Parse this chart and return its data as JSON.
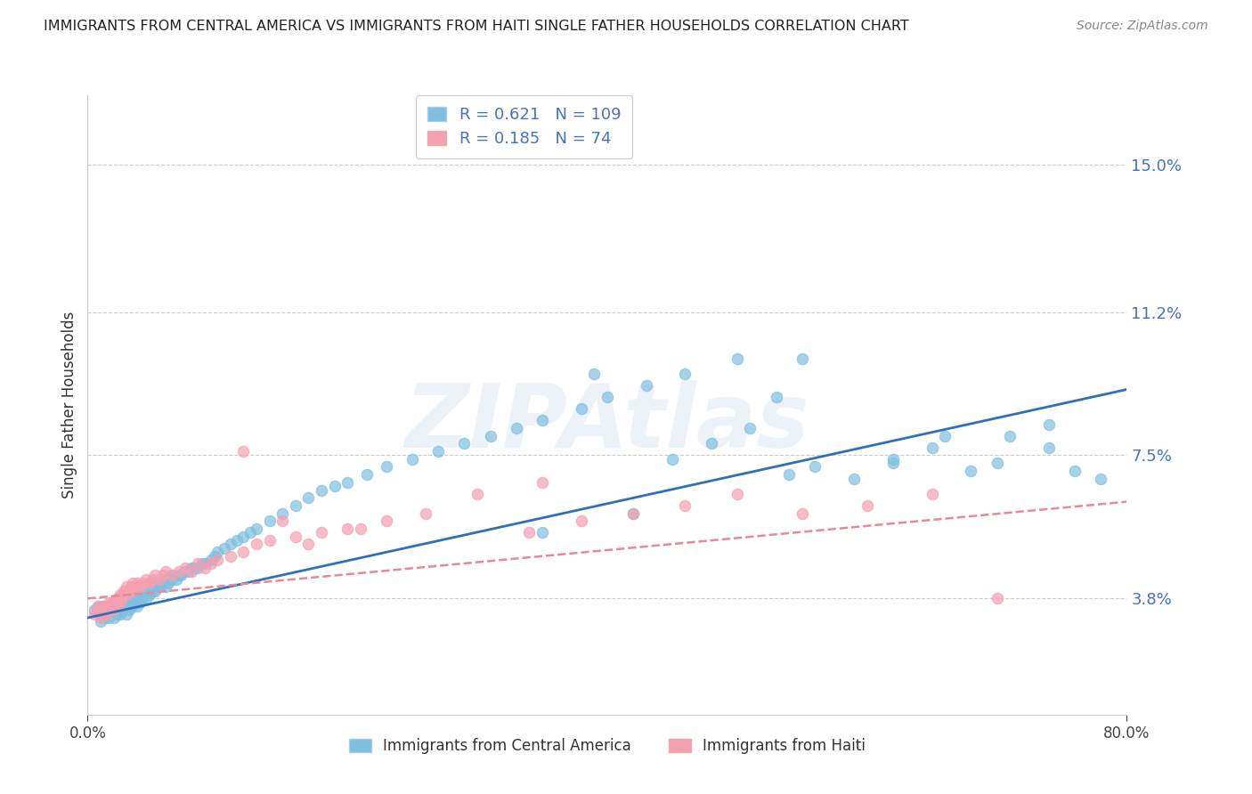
{
  "title": "IMMIGRANTS FROM CENTRAL AMERICA VS IMMIGRANTS FROM HAITI SINGLE FATHER HOUSEHOLDS CORRELATION CHART",
  "source": "Source: ZipAtlas.com",
  "ylabel": "Single Father Households",
  "ytick_labels": [
    "3.8%",
    "7.5%",
    "11.2%",
    "15.0%"
  ],
  "ytick_values": [
    0.038,
    0.075,
    0.112,
    0.15
  ],
  "xlim": [
    0.0,
    0.8
  ],
  "ylim": [
    0.008,
    0.168
  ],
  "blue_label": "Immigrants from Central America",
  "pink_label": "Immigrants from Haiti",
  "R_blue": 0.621,
  "N_blue": 109,
  "R_pink": 0.185,
  "N_pink": 74,
  "blue_color": "#7fbfdf",
  "pink_color": "#f4a0b0",
  "blue_line_color": "#3070b8",
  "pink_line_color": "#e88898",
  "background_color": "#ffffff",
  "watermark": "ZIPAtlas",
  "title_fontsize": 11.5,
  "blue_points_x": [
    0.005,
    0.008,
    0.01,
    0.01,
    0.012,
    0.013,
    0.015,
    0.015,
    0.016,
    0.018,
    0.02,
    0.02,
    0.022,
    0.022,
    0.023,
    0.025,
    0.025,
    0.026,
    0.027,
    0.028,
    0.03,
    0.03,
    0.032,
    0.032,
    0.033,
    0.035,
    0.035,
    0.036,
    0.037,
    0.038,
    0.04,
    0.04,
    0.042,
    0.043,
    0.045,
    0.046,
    0.048,
    0.05,
    0.05,
    0.052,
    0.055,
    0.055,
    0.058,
    0.06,
    0.06,
    0.062,
    0.065,
    0.065,
    0.068,
    0.07,
    0.072,
    0.075,
    0.078,
    0.08,
    0.082,
    0.085,
    0.088,
    0.09,
    0.095,
    0.098,
    0.1,
    0.105,
    0.11,
    0.115,
    0.12,
    0.125,
    0.13,
    0.14,
    0.15,
    0.16,
    0.17,
    0.18,
    0.19,
    0.2,
    0.215,
    0.23,
    0.25,
    0.27,
    0.29,
    0.31,
    0.33,
    0.35,
    0.38,
    0.4,
    0.43,
    0.46,
    0.5,
    0.53,
    0.56,
    0.59,
    0.62,
    0.65,
    0.68,
    0.71,
    0.74,
    0.39,
    0.45,
    0.48,
    0.51,
    0.54,
    0.55,
    0.62,
    0.66,
    0.7,
    0.74,
    0.76,
    0.78,
    0.35,
    0.42
  ],
  "blue_points_y": [
    0.035,
    0.036,
    0.032,
    0.034,
    0.036,
    0.033,
    0.034,
    0.036,
    0.033,
    0.035,
    0.033,
    0.035,
    0.034,
    0.036,
    0.035,
    0.034,
    0.036,
    0.035,
    0.036,
    0.037,
    0.034,
    0.036,
    0.035,
    0.037,
    0.036,
    0.036,
    0.038,
    0.037,
    0.038,
    0.036,
    0.037,
    0.039,
    0.038,
    0.04,
    0.038,
    0.04,
    0.039,
    0.04,
    0.041,
    0.04,
    0.041,
    0.042,
    0.042,
    0.041,
    0.043,
    0.042,
    0.043,
    0.044,
    0.043,
    0.044,
    0.044,
    0.045,
    0.045,
    0.046,
    0.046,
    0.046,
    0.047,
    0.047,
    0.048,
    0.049,
    0.05,
    0.051,
    0.052,
    0.053,
    0.054,
    0.055,
    0.056,
    0.058,
    0.06,
    0.062,
    0.064,
    0.066,
    0.067,
    0.068,
    0.07,
    0.072,
    0.074,
    0.076,
    0.078,
    0.08,
    0.082,
    0.084,
    0.087,
    0.09,
    0.093,
    0.096,
    0.1,
    0.09,
    0.072,
    0.069,
    0.073,
    0.077,
    0.071,
    0.08,
    0.083,
    0.096,
    0.074,
    0.078,
    0.082,
    0.07,
    0.1,
    0.074,
    0.08,
    0.073,
    0.077,
    0.071,
    0.069,
    0.055,
    0.06
  ],
  "pink_points_x": [
    0.005,
    0.007,
    0.008,
    0.01,
    0.01,
    0.012,
    0.012,
    0.013,
    0.014,
    0.015,
    0.015,
    0.016,
    0.017,
    0.018,
    0.019,
    0.02,
    0.02,
    0.021,
    0.022,
    0.023,
    0.025,
    0.025,
    0.026,
    0.027,
    0.028,
    0.03,
    0.03,
    0.032,
    0.033,
    0.035,
    0.035,
    0.037,
    0.038,
    0.04,
    0.042,
    0.045,
    0.048,
    0.05,
    0.052,
    0.055,
    0.058,
    0.06,
    0.065,
    0.07,
    0.075,
    0.08,
    0.085,
    0.09,
    0.095,
    0.1,
    0.11,
    0.12,
    0.13,
    0.14,
    0.16,
    0.18,
    0.2,
    0.23,
    0.26,
    0.3,
    0.34,
    0.38,
    0.42,
    0.46,
    0.5,
    0.55,
    0.6,
    0.65,
    0.7,
    0.35,
    0.12,
    0.15,
    0.17,
    0.21
  ],
  "pink_points_y": [
    0.034,
    0.035,
    0.036,
    0.033,
    0.035,
    0.034,
    0.036,
    0.035,
    0.036,
    0.034,
    0.036,
    0.035,
    0.037,
    0.036,
    0.037,
    0.035,
    0.037,
    0.036,
    0.037,
    0.038,
    0.037,
    0.039,
    0.038,
    0.039,
    0.04,
    0.039,
    0.041,
    0.04,
    0.041,
    0.04,
    0.042,
    0.041,
    0.042,
    0.041,
    0.042,
    0.043,
    0.042,
    0.043,
    0.044,
    0.043,
    0.044,
    0.045,
    0.044,
    0.045,
    0.046,
    0.045,
    0.047,
    0.046,
    0.047,
    0.048,
    0.049,
    0.05,
    0.052,
    0.053,
    0.054,
    0.055,
    0.056,
    0.058,
    0.06,
    0.065,
    0.055,
    0.058,
    0.06,
    0.062,
    0.065,
    0.06,
    0.062,
    0.065,
    0.038,
    0.068,
    0.076,
    0.058,
    0.052,
    0.056
  ]
}
